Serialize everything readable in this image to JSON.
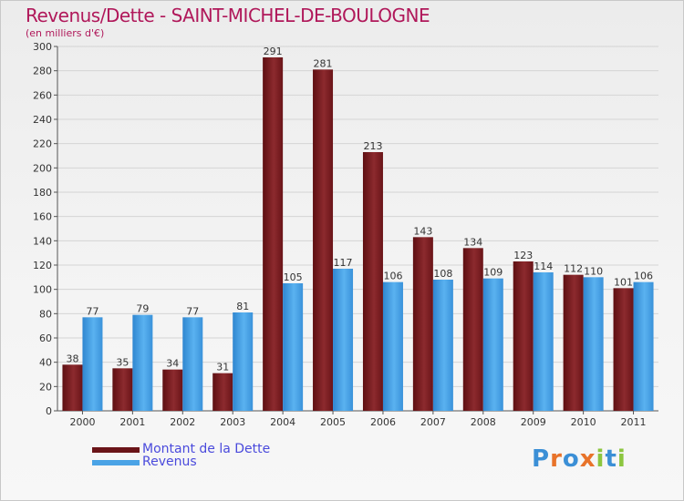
{
  "chart_data": {
    "type": "bar",
    "title": "Revenus/Dette - SAINT-MICHEL-DE-BOULOGNE",
    "subtitle": "(en milliers d'€)",
    "categories": [
      "2000",
      "2001",
      "2002",
      "2003",
      "2004",
      "2005",
      "2006",
      "2007",
      "2008",
      "2009",
      "2010",
      "2011"
    ],
    "series": [
      {
        "name": "Montant de la Dette",
        "values": [
          38,
          35,
          34,
          31,
          291,
          281,
          213,
          143,
          134,
          123,
          112,
          101
        ],
        "color": "#7a1a1e"
      },
      {
        "name": "Revenus",
        "values": [
          77,
          79,
          77,
          81,
          105,
          117,
          106,
          108,
          109,
          114,
          110,
          106
        ],
        "color": "#4aa3e6"
      }
    ],
    "ylim": [
      0,
      300
    ],
    "yticks": [
      0,
      20,
      40,
      60,
      80,
      100,
      120,
      140,
      160,
      180,
      200,
      220,
      240,
      260,
      280,
      300
    ],
    "grid": true,
    "legend_position": "bottom-left"
  },
  "logo": {
    "letters": [
      {
        "ch": "P",
        "color": "#3b8fd6"
      },
      {
        "ch": "r",
        "color": "#e8732a"
      },
      {
        "ch": "o",
        "color": "#3b8fd6"
      },
      {
        "ch": "x",
        "color": "#e8732a"
      },
      {
        "ch": "i",
        "color": "#8cc63f"
      },
      {
        "ch": "t",
        "color": "#3b8fd6"
      },
      {
        "ch": "i",
        "color": "#8cc63f"
      }
    ]
  }
}
